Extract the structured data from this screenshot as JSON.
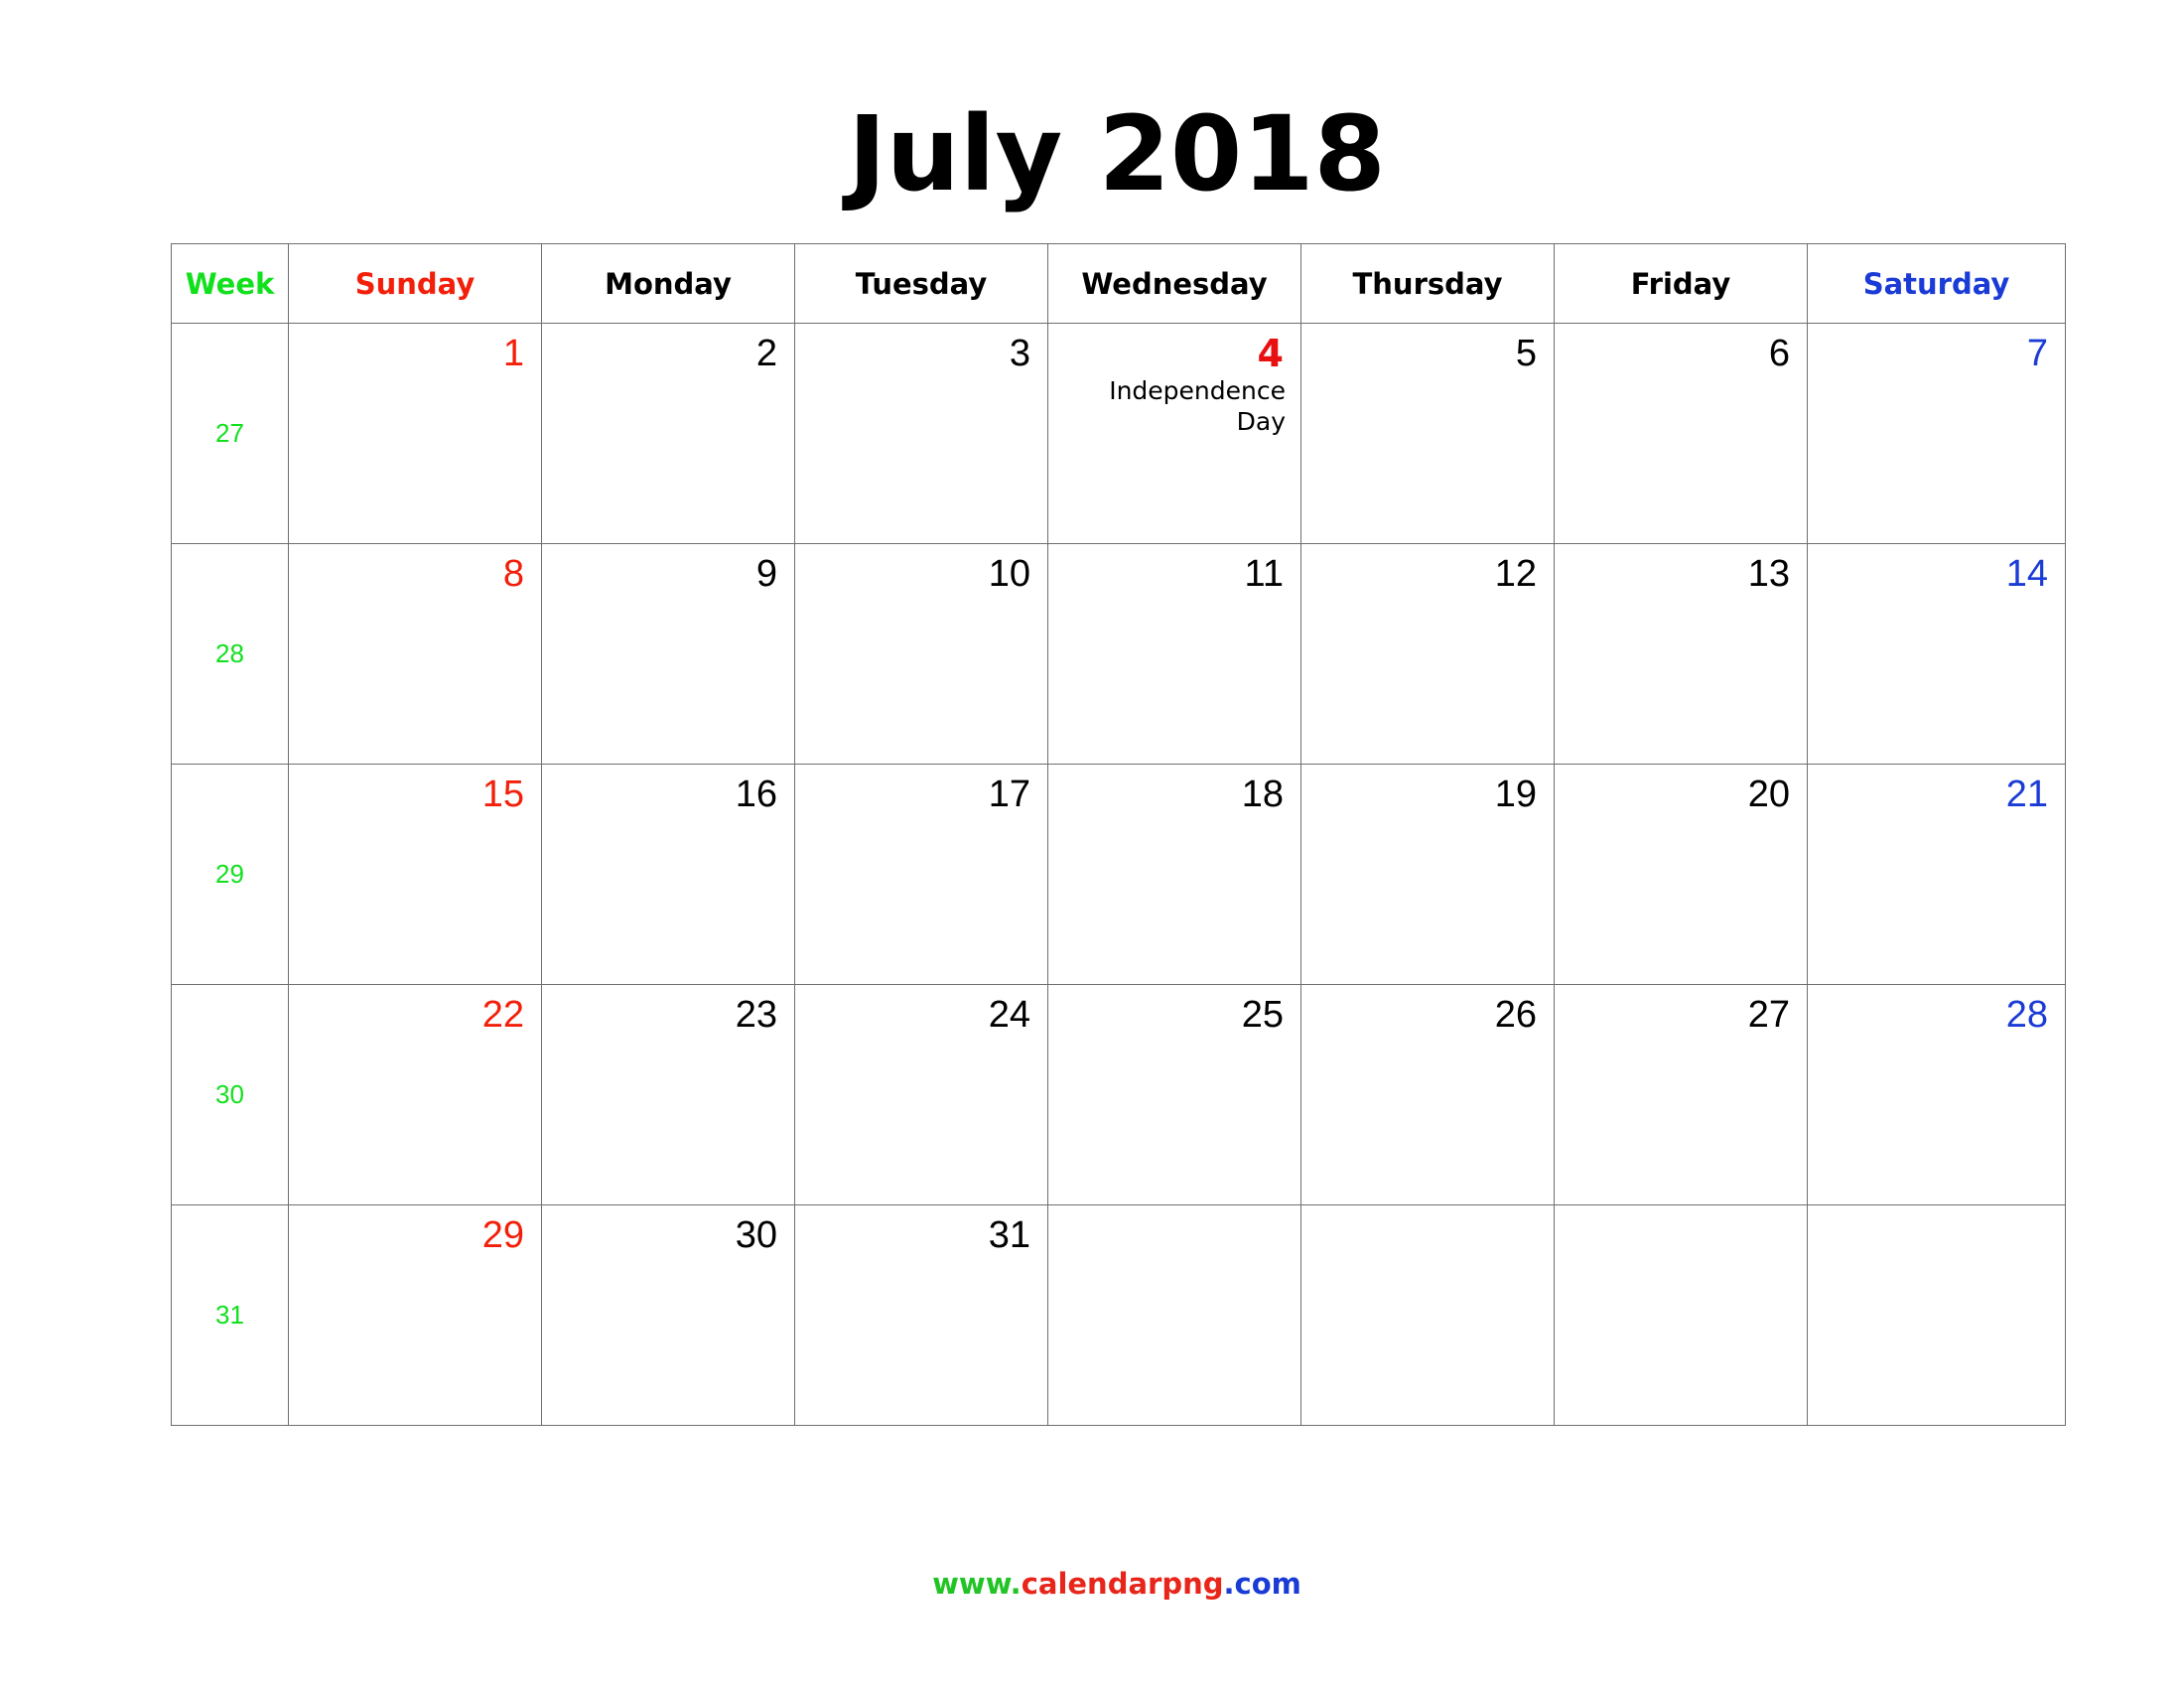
{
  "title": "July 2018",
  "colors": {
    "week": "#11e01d",
    "sunday": "#f21f0a",
    "weekday": "#000000",
    "saturday": "#1a3bd6",
    "holiday": "#e81010",
    "footer_www": "#22c425",
    "footer_domain": "#e8251a",
    "footer_tld": "#1a3bd6"
  },
  "headers": {
    "week": "Week",
    "days": [
      "Sunday",
      "Monday",
      "Tuesday",
      "Wednesday",
      "Thursday",
      "Friday",
      "Saturday"
    ]
  },
  "weeks": [
    {
      "week": "27",
      "days": [
        "1",
        "2",
        "3",
        "4",
        "5",
        "6",
        "7"
      ]
    },
    {
      "week": "28",
      "days": [
        "8",
        "9",
        "10",
        "11",
        "12",
        "13",
        "14"
      ]
    },
    {
      "week": "29",
      "days": [
        "15",
        "16",
        "17",
        "18",
        "19",
        "20",
        "21"
      ]
    },
    {
      "week": "30",
      "days": [
        "22",
        "23",
        "24",
        "25",
        "26",
        "27",
        "28"
      ]
    },
    {
      "week": "31",
      "days": [
        "29",
        "30",
        "31",
        "",
        "",
        "",
        ""
      ]
    }
  ],
  "events": [
    {
      "row": 0,
      "col": 3,
      "lines": [
        "Independence",
        "Day"
      ]
    }
  ],
  "footer": {
    "www": "www.",
    "domain": "calendarpng",
    "tld": ".com"
  }
}
